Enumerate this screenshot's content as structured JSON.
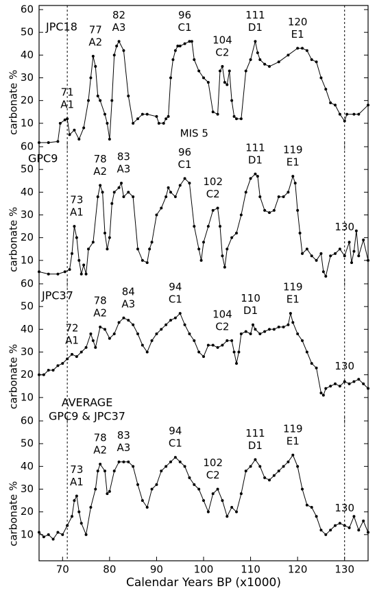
{
  "chart_data": [
    {
      "type": "line",
      "title": "JPC18",
      "ylabel": "carbonate %",
      "color": "#000000",
      "xlim": [
        65,
        135
      ],
      "ylim": [
        0,
        60
      ],
      "yticks": [
        10,
        20,
        30,
        40,
        50,
        60
      ],
      "reference_lines": [
        71,
        130
      ],
      "x": [
        65,
        67,
        69,
        69.5,
        70.5,
        71,
        71.5,
        72.5,
        73.5,
        74.5,
        75.5,
        76,
        76.5,
        77,
        77.5,
        78,
        79,
        79.5,
        80,
        80.5,
        81,
        81.5,
        82,
        83,
        84,
        85,
        86,
        87,
        88,
        90,
        90.5,
        91.5,
        92,
        92.5,
        93,
        93.5,
        94,
        94.5,
        95,
        96,
        97,
        97.5,
        98,
        99,
        100,
        101,
        102,
        103,
        103.5,
        104,
        104.5,
        105,
        105.5,
        106,
        106.5,
        107,
        108,
        109,
        110,
        111,
        111.5,
        112,
        113,
        114,
        116,
        118,
        120,
        121,
        122,
        123,
        124,
        125,
        126,
        127,
        128,
        129,
        130,
        130.5,
        132,
        133,
        135
      ],
      "values": [
        1.5,
        1.5,
        2,
        10,
        11.5,
        12,
        5,
        7,
        3,
        8,
        20,
        30,
        39.5,
        35,
        22,
        20,
        14,
        10,
        3,
        20,
        40,
        44,
        46,
        42,
        22,
        10,
        12,
        14,
        14,
        13,
        10,
        10,
        12,
        13,
        30,
        38,
        42,
        44,
        44,
        45,
        46,
        46,
        38,
        33,
        30,
        28,
        15,
        14,
        33,
        35,
        28,
        27,
        33,
        20,
        13,
        12,
        12,
        33,
        38,
        46,
        41,
        38,
        36,
        35,
        37,
        40,
        43,
        43,
        42,
        38,
        37,
        30,
        25,
        19,
        18,
        14,
        11,
        14,
        14,
        14,
        18
      ],
      "annotations": [
        {
          "age": 71,
          "label": "A1"
        },
        {
          "age": 77,
          "label": "A2"
        },
        {
          "age": 82,
          "label": "A3"
        },
        {
          "age": 96,
          "label": "C1"
        },
        {
          "age": 104,
          "label": "C2"
        },
        {
          "age": 111,
          "label": "D1"
        },
        {
          "age": 120,
          "label": "E1"
        }
      ],
      "note": "MIS 5"
    },
    {
      "type": "line",
      "title": "GPC9",
      "ylabel": "carbonate %",
      "color": "#000000",
      "xlim": [
        65,
        135
      ],
      "ylim": [
        0,
        60
      ],
      "yticks": [
        10,
        20,
        30,
        40,
        50,
        60
      ],
      "reference_lines": [
        71,
        130
      ],
      "x": [
        65,
        67,
        69,
        70.5,
        71.5,
        72,
        72.5,
        73,
        73.5,
        74,
        74.5,
        75,
        75.5,
        76.5,
        77.5,
        78,
        78.5,
        79,
        79.5,
        80,
        80.5,
        81,
        82,
        82.5,
        83,
        84,
        85,
        86,
        87,
        88,
        88.5,
        89,
        90,
        91,
        92,
        92.5,
        93,
        94,
        95,
        96,
        97,
        98,
        99,
        99.5,
        100,
        101,
        102,
        103,
        103.5,
        104,
        104.5,
        105,
        106,
        107,
        108,
        109,
        110,
        111,
        111.5,
        112,
        113,
        114,
        115,
        116,
        117,
        118,
        119,
        119.5,
        120,
        120.5,
        121,
        122,
        123,
        124,
        125,
        125.5,
        126,
        127,
        128,
        129,
        130,
        131,
        131.5,
        132,
        132.5,
        133,
        134,
        135
      ],
      "values": [
        5,
        4,
        4,
        5,
        6,
        13,
        25,
        20,
        10,
        4,
        8,
        4,
        15,
        18,
        38,
        43,
        40,
        22,
        15,
        20,
        35,
        40,
        42,
        44,
        38,
        40,
        38,
        15,
        10,
        9,
        15,
        18,
        30,
        33,
        38,
        42,
        40,
        38,
        43,
        46,
        44,
        25,
        15,
        10,
        18,
        25,
        32,
        33,
        25,
        12,
        7,
        15,
        20,
        22,
        30,
        40,
        46,
        48,
        47,
        38,
        32,
        31,
        32,
        38,
        38,
        40,
        47,
        44,
        32,
        22,
        13,
        15,
        12,
        10,
        13,
        5,
        3,
        12,
        13,
        15,
        12,
        18,
        9,
        14,
        23,
        12,
        19,
        10
      ],
      "annotations": [
        {
          "age": 73,
          "label": "A1"
        },
        {
          "age": 78,
          "label": "A2"
        },
        {
          "age": 83,
          "label": "A3"
        },
        {
          "age": 96,
          "label": "C1"
        },
        {
          "age": 102,
          "label": "C2"
        },
        {
          "age": 111,
          "label": "D1"
        },
        {
          "age": 119,
          "label": "E1"
        },
        {
          "age": 130
        }
      ]
    },
    {
      "type": "line",
      "title": "JPC37",
      "ylabel": "carbonate %",
      "color": "#000000",
      "xlim": [
        65,
        135
      ],
      "ylim": [
        0,
        60
      ],
      "yticks": [
        10,
        20,
        30,
        40,
        50,
        60
      ],
      "reference_lines": [
        71,
        130
      ],
      "x": [
        65,
        66,
        67,
        68,
        69,
        70,
        71,
        72,
        73,
        74,
        75,
        76,
        76.5,
        77,
        78,
        79,
        80,
        81,
        82,
        83,
        84,
        85,
        86,
        87,
        88,
        89,
        90,
        91,
        92,
        93,
        94,
        95,
        96,
        97,
        98,
        99,
        100,
        101,
        102,
        103,
        104,
        105,
        106,
        106.5,
        107,
        107.5,
        108,
        109,
        110,
        110.5,
        111,
        112,
        113,
        114,
        115,
        116,
        117,
        118,
        118.5,
        119,
        120,
        121,
        122,
        123,
        124,
        125,
        125.5,
        126,
        127,
        128,
        129,
        130,
        131,
        132,
        133,
        134,
        135
      ],
      "values": [
        20,
        20,
        22,
        22,
        24,
        25,
        27,
        29,
        28,
        30,
        32,
        38,
        35,
        32,
        41,
        40,
        36,
        38,
        43,
        45,
        44,
        42,
        38,
        33,
        30,
        35,
        38,
        40,
        42,
        44,
        45,
        47,
        42,
        38,
        35,
        30,
        28,
        33,
        33,
        32,
        33,
        35,
        35,
        30,
        25,
        30,
        38,
        39,
        38,
        42,
        40,
        38,
        39,
        40,
        40,
        41,
        41,
        42,
        47,
        43,
        38,
        35,
        30,
        25,
        23,
        12,
        11,
        14,
        15,
        16,
        15,
        17,
        16,
        17,
        18,
        16,
        14
      ],
      "annotations": [
        {
          "age": 72,
          "label": "A1"
        },
        {
          "age": 78,
          "label": "A2"
        },
        {
          "age": 84,
          "label": "A3"
        },
        {
          "age": 94,
          "label": "C1"
        },
        {
          "age": 104,
          "label": "C2"
        },
        {
          "age": 110,
          "label": "D1"
        },
        {
          "age": 119,
          "label": "E1"
        },
        {
          "age": 130
        }
      ]
    },
    {
      "type": "line",
      "title": "AVERAGE",
      "subtitle": "GPC9 & JPC37",
      "ylabel": "carbonate %",
      "xlabel": "Calendar Years BP (x1000)",
      "color": "#000000",
      "xlim": [
        65,
        135
      ],
      "xticks": [
        70,
        80,
        90,
        100,
        110,
        120,
        130
      ],
      "ylim": [
        0,
        60
      ],
      "yticks": [
        10,
        20,
        30,
        40,
        50,
        60
      ],
      "reference_lines": [
        71,
        130
      ],
      "x": [
        65,
        66,
        67,
        68,
        69,
        70,
        71,
        72,
        72.5,
        73,
        73.5,
        74,
        75,
        76,
        77,
        77.5,
        78,
        79,
        79.5,
        80,
        81,
        82,
        83,
        84,
        85,
        86,
        87,
        88,
        89,
        90,
        91,
        92,
        93,
        94,
        95,
        96,
        97,
        98,
        99,
        100,
        101,
        102,
        103,
        104,
        105,
        106,
        107,
        108,
        109,
        110,
        111,
        112,
        113,
        114,
        115,
        116,
        117,
        118,
        119,
        120,
        121,
        122,
        123,
        124,
        125,
        126,
        127,
        128,
        129,
        130,
        131,
        132,
        133,
        134,
        135
      ],
      "values": [
        11,
        9,
        10,
        8,
        11,
        10,
        14,
        18,
        25,
        27,
        20,
        15,
        10,
        22,
        30,
        38,
        41,
        38,
        28,
        29,
        38,
        42,
        42,
        42,
        40,
        32,
        25,
        22,
        30,
        32,
        38,
        40,
        42,
        44,
        42,
        40,
        35,
        32,
        30,
        25,
        20,
        28,
        30,
        25,
        18,
        22,
        20,
        28,
        38,
        40,
        43,
        40,
        35,
        34,
        36,
        38,
        40,
        42,
        45,
        40,
        30,
        23,
        22,
        18,
        12,
        10,
        12,
        14,
        15,
        14,
        13,
        18,
        12,
        16,
        11
      ],
      "annotations": [
        {
          "age": 73,
          "label": "A1"
        },
        {
          "age": 78,
          "label": "A2"
        },
        {
          "age": 83,
          "label": "A3"
        },
        {
          "age": 94,
          "label": "C1"
        },
        {
          "age": 102,
          "label": "C2"
        },
        {
          "age": 111,
          "label": "D1"
        },
        {
          "age": 119,
          "label": "E1"
        },
        {
          "age": 130
        }
      ]
    }
  ]
}
